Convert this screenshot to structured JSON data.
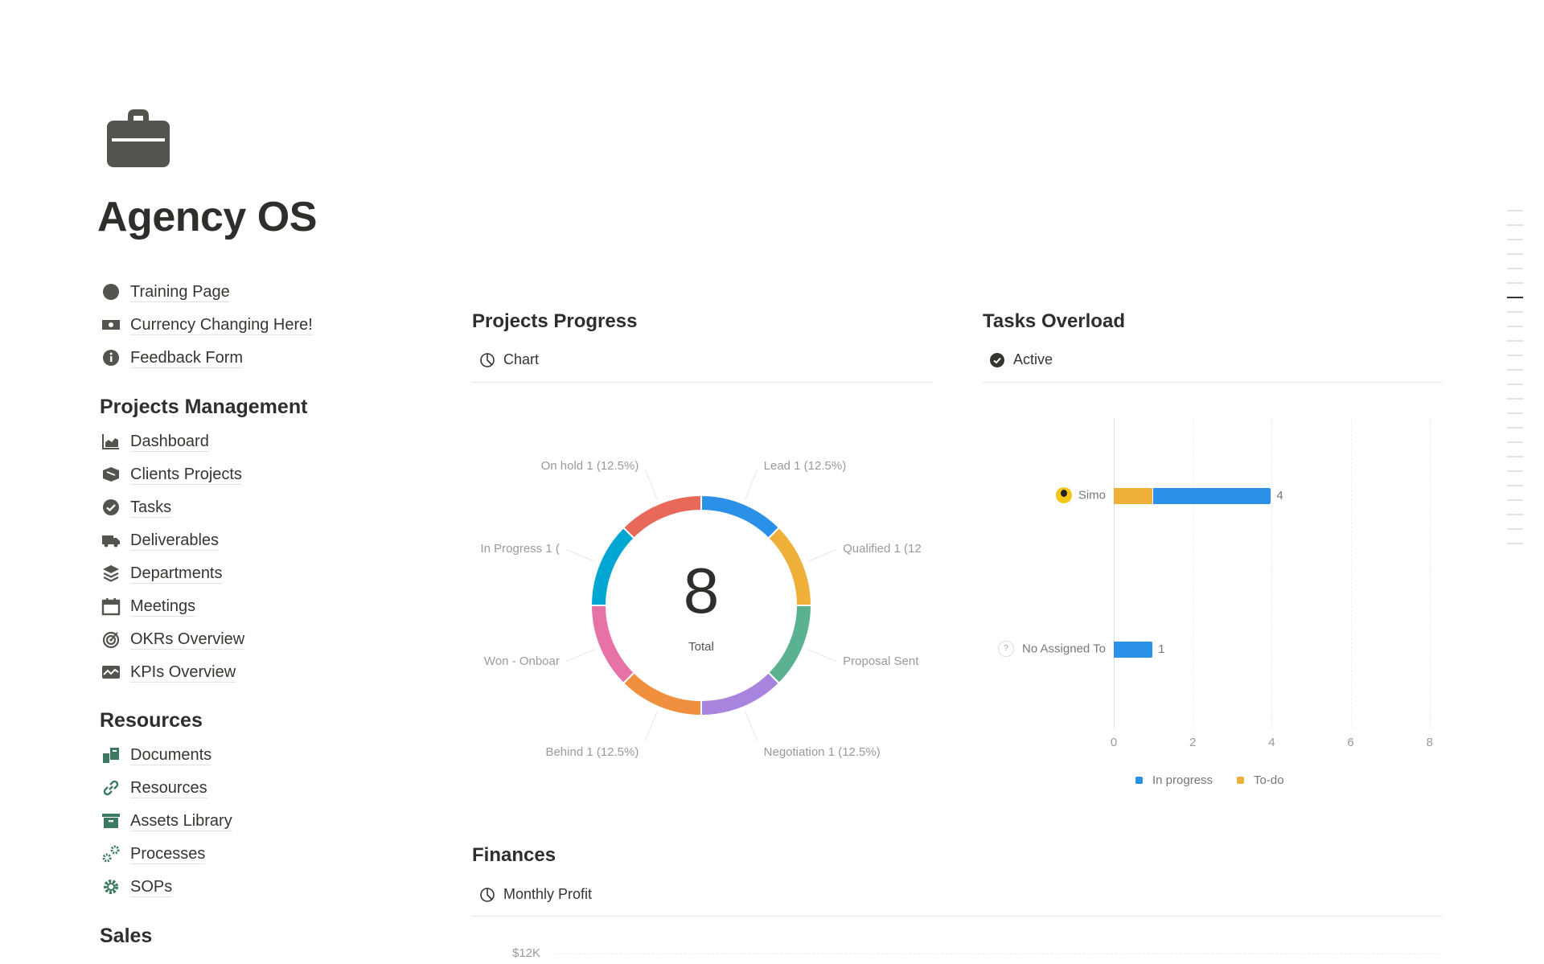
{
  "page": {
    "title": "Agency OS",
    "icon": "briefcase-icon"
  },
  "top_links": [
    {
      "label": "Training Page",
      "icon": "circle-icon"
    },
    {
      "label": "Currency Changing Here!",
      "icon": "money-bill-icon"
    },
    {
      "label": "Feedback Form",
      "icon": "info-circle-icon"
    }
  ],
  "sections": [
    {
      "heading": "Projects Management",
      "items": [
        {
          "label": "Dashboard",
          "icon": "chart-area-icon"
        },
        {
          "label": "Clients Projects",
          "icon": "box-icon"
        },
        {
          "label": "Tasks",
          "icon": "check-circle-icon"
        },
        {
          "label": "Deliverables",
          "icon": "truck-icon"
        },
        {
          "label": "Departments",
          "icon": "layers-icon"
        },
        {
          "label": "Meetings",
          "icon": "calendar-icon"
        },
        {
          "label": "OKRs Overview",
          "icon": "target-icon"
        },
        {
          "label": "KPIs Overview",
          "icon": "chart-line-icon"
        }
      ]
    },
    {
      "heading": "Resources",
      "items": [
        {
          "label": "Documents",
          "icon": "documents-icon"
        },
        {
          "label": "Resources",
          "icon": "link-icon"
        },
        {
          "label": "Assets Library",
          "icon": "archive-icon"
        },
        {
          "label": "Processes",
          "icon": "gears-icon"
        },
        {
          "label": "SOPs",
          "icon": "gear-icon"
        }
      ]
    },
    {
      "heading": "Sales",
      "items": []
    }
  ],
  "projects_progress": {
    "heading": "Projects Progress",
    "tab": "Chart"
  },
  "tasks_overload": {
    "heading": "Tasks Overload",
    "tab": "Active"
  },
  "finances": {
    "heading": "Finances",
    "tab": "Monthly Profit",
    "first_tick": "$12K"
  },
  "colors": {
    "blue": "#2a90e8",
    "yellow": "#efb03a",
    "green": "#5bb291",
    "purple": "#a984de",
    "orange": "#f0903f",
    "pink": "#e672a6",
    "cyan": "#02a6d2",
    "red": "#e8695a"
  },
  "chart_data": [
    {
      "type": "pie",
      "donut": true,
      "center_value": "8",
      "center_label": "Total",
      "slices": [
        {
          "name": "Lead",
          "value": 1,
          "label": "Lead 1 (12.5%)",
          "color": "#2a90e8"
        },
        {
          "name": "Qualified",
          "value": 1,
          "label": "Qualified 1 (12",
          "color": "#efb03a"
        },
        {
          "name": "Proposal Sent",
          "value": 1,
          "label": "Proposal Sent",
          "color": "#5bb291"
        },
        {
          "name": "Negotiation",
          "value": 1,
          "label": "Negotiation 1 (12.5%)",
          "color": "#a984de"
        },
        {
          "name": "Behind",
          "value": 1,
          "label": "Behind 1 (12.5%)",
          "color": "#f0903f"
        },
        {
          "name": "Won - Onboar",
          "value": 1,
          "label": "Won - Onboar",
          "color": "#e672a6"
        },
        {
          "name": "In Progress",
          "value": 1,
          "label": "In Progress 1 (",
          "color": "#02a6d2"
        },
        {
          "name": "On hold",
          "value": 1,
          "label": "On hold 1 (12.5%)",
          "color": "#e8695a"
        }
      ]
    },
    {
      "type": "bar",
      "orientation": "horizontal",
      "stacked": true,
      "categories": [
        "Simo",
        "No Assigned To"
      ],
      "series": [
        {
          "name": "To-do",
          "values": [
            1,
            0
          ],
          "color": "#efb03a"
        },
        {
          "name": "In progress",
          "values": [
            3,
            1
          ],
          "color": "#2a90e8"
        }
      ],
      "totals": [
        "4",
        "1"
      ],
      "xlim": [
        0,
        8
      ],
      "xticks": [
        "0",
        "2",
        "4",
        "6",
        "8"
      ],
      "grid": true,
      "legend": "bottom",
      "legend_entries": [
        "In progress",
        "To-do"
      ]
    }
  ]
}
